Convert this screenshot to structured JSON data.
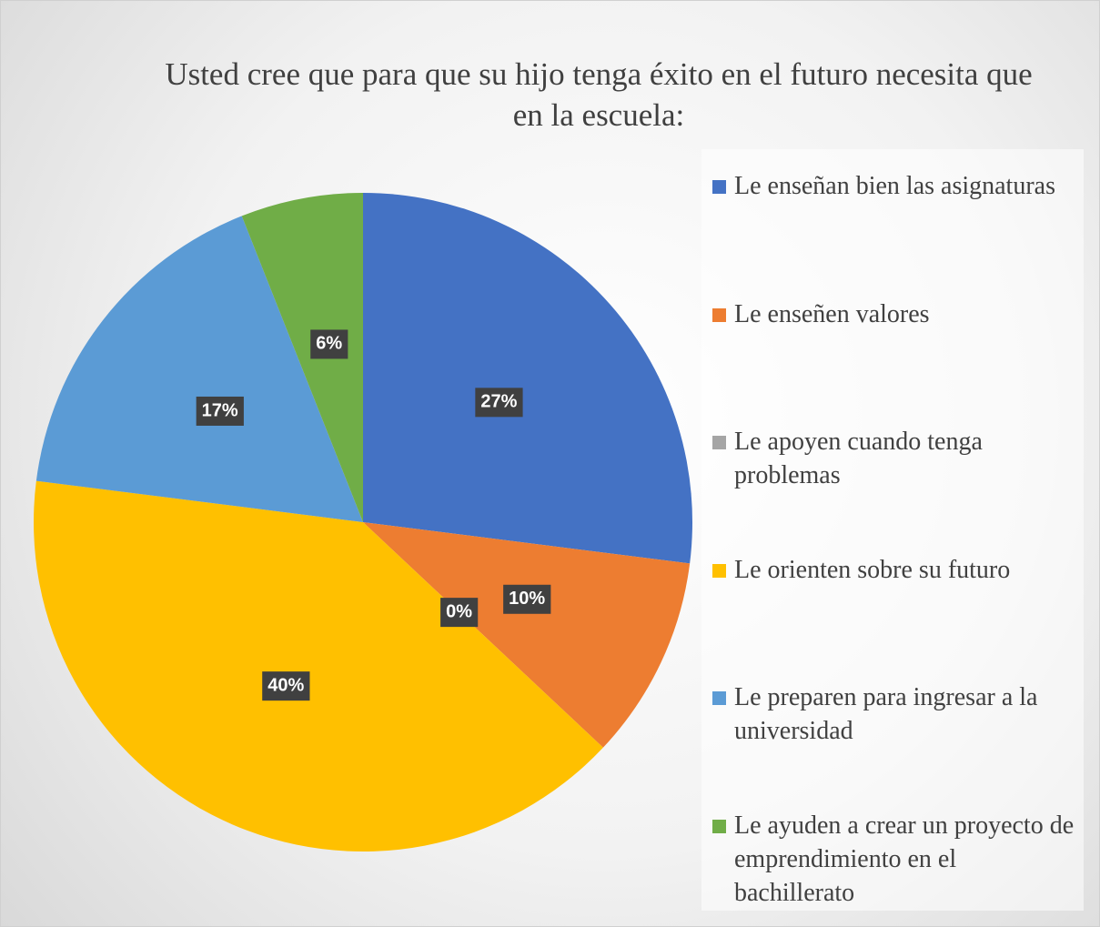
{
  "chart_data": {
    "type": "pie",
    "title": "Usted cree que para que su hijo tenga éxito en el futuro necesita que en la escuela:",
    "categories": [
      "Le enseñan bien las asignaturas",
      "Le enseñen valores",
      "Le apoyen cuando tenga problemas",
      "Le orienten sobre su futuro",
      "Le preparen para ingresar a la universidad",
      "Le ayuden a crear un proyecto de emprendimiento en el bachillerato"
    ],
    "values": [
      27,
      10,
      0,
      40,
      17,
      6
    ],
    "value_labels": [
      "27%",
      "10%",
      "0%",
      "40%",
      "17%",
      "6%"
    ],
    "colors": [
      "#4472c4",
      "#ed7d31",
      "#a5a5a5",
      "#ffc000",
      "#5b9bd5",
      "#70ad47"
    ],
    "legend": "right"
  }
}
